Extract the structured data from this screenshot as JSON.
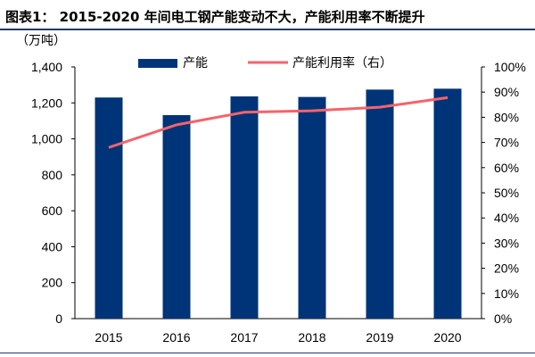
{
  "title": "图表1： 2015-2020 年间电工钢产能变动不大，产能利用率不断提升",
  "chart_data": {
    "type": "bar+line",
    "categories": [
      "2015",
      "2016",
      "2017",
      "2018",
      "2019",
      "2020"
    ],
    "series": [
      {
        "name": "产能",
        "type": "bar",
        "axis": "left",
        "color": "#003478",
        "values": [
          1230,
          1132,
          1236,
          1233,
          1274,
          1279
        ]
      },
      {
        "name": "产能利用率（右）",
        "type": "line",
        "axis": "right",
        "color": "#f4636b",
        "values": [
          68,
          77,
          82,
          82.6,
          84,
          87.8
        ]
      }
    ],
    "ylabel_left": "（万吨）",
    "ylim_left": [
      0,
      1400
    ],
    "yticks_left": [
      "0",
      "200",
      "400",
      "600",
      "800",
      "1,000",
      "1,200",
      "1,400"
    ],
    "ylim_right": [
      0,
      100
    ],
    "yticks_right": [
      "0%",
      "10%",
      "20%",
      "30%",
      "40%",
      "50%",
      "60%",
      "70%",
      "80%",
      "90%",
      "100%"
    ],
    "legend": "top",
    "grid": false
  }
}
